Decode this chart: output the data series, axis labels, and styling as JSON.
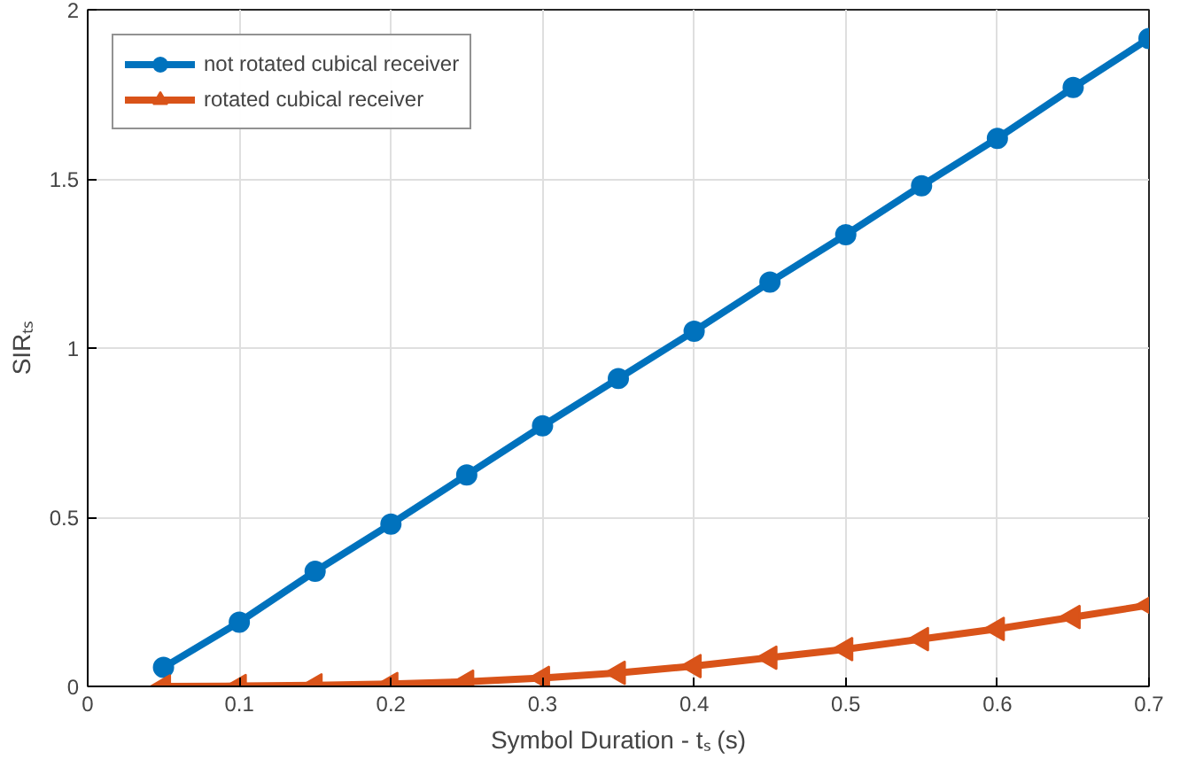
{
  "chart_data": {
    "type": "line",
    "xlabel": "Symbol Duration - tₛ (s)",
    "ylabel": "SIRₜₛ",
    "x": [
      0.05,
      0.1,
      0.15,
      0.2,
      0.25,
      0.3,
      0.35,
      0.4,
      0.45,
      0.5,
      0.55,
      0.6,
      0.65,
      0.7
    ],
    "series": [
      {
        "name": "not rotated cubical receiver",
        "color": "#0072bd",
        "marker": "circle",
        "values": [
          0.056,
          0.19,
          0.34,
          0.48,
          0.625,
          0.77,
          0.91,
          1.05,
          1.195,
          1.335,
          1.48,
          1.62,
          1.77,
          1.915
        ]
      },
      {
        "name": "rotated cubical receiver",
        "color": "#d95319",
        "marker": "triangle",
        "values": [
          0,
          0.001,
          0.003,
          0.007,
          0.014,
          0.025,
          0.04,
          0.06,
          0.085,
          0.11,
          0.14,
          0.17,
          0.205,
          0.24
        ]
      }
    ],
    "xlim": [
      0,
      0.7
    ],
    "xticks": [
      0,
      0.1,
      0.2,
      0.3,
      0.4,
      0.5,
      0.6,
      0.7
    ],
    "ylim": [
      0,
      2
    ],
    "yticks": [
      0,
      0.5,
      1,
      1.5,
      2
    ],
    "grid": true,
    "legend": "top left",
    "line_style": "solid"
  }
}
